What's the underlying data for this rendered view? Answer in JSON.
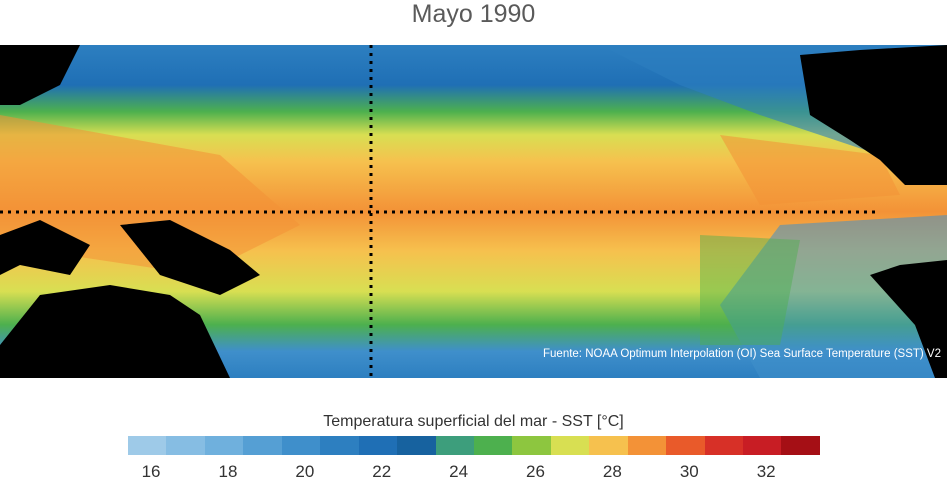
{
  "title": "Mayo 1990",
  "source": "Fuente: NOAA Optimum Interpolation (OI) Sea Surface Temperature (SST) V2",
  "colorbar": {
    "label": "Temperatura superficial del mar - SST  [°C]",
    "colors": [
      "#9ecae8",
      "#86bde3",
      "#6fb0dd",
      "#559fd4",
      "#3f8fcb",
      "#2d7fc0",
      "#1f6fb5",
      "#17629f",
      "#3d9e7c",
      "#4db04e",
      "#8dc63f",
      "#d8df52",
      "#f6c14e",
      "#f39237",
      "#e95a2a",
      "#d73027",
      "#c81d24",
      "#a50f15"
    ],
    "ticks": [
      "16",
      "18",
      "20",
      "22",
      "24",
      "26",
      "28",
      "30",
      "32"
    ]
  }
}
